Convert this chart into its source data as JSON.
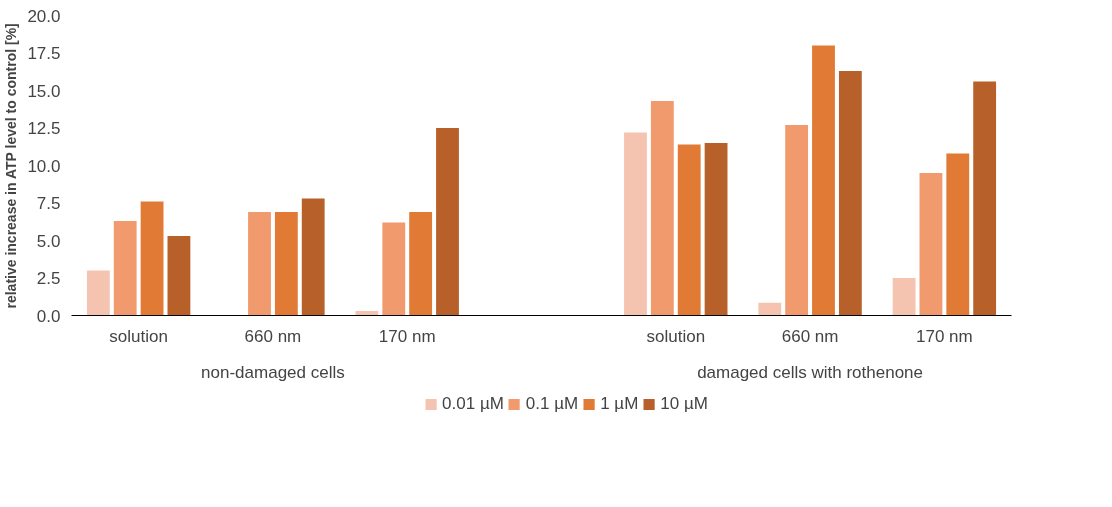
{
  "chart_data": {
    "type": "bar",
    "ylabel": "relative increase in ATP level to control [%]",
    "categories": [
      "solution",
      "660 nm",
      "170 nm",
      null,
      "solution",
      "660 nm",
      "170 nm"
    ],
    "series": [
      {
        "name": "0.01 µM",
        "color": "#f5c4b0",
        "values": [
          3.0,
          null,
          0.3,
          null,
          12.2,
          0.85,
          2.5
        ]
      },
      {
        "name": "0.1 µM",
        "color": "#f09a6e",
        "values": [
          6.3,
          6.9,
          6.2,
          null,
          14.3,
          12.7,
          9.5
        ]
      },
      {
        "name": "1 µM",
        "color": "#e07a35",
        "values": [
          7.6,
          6.9,
          6.9,
          null,
          11.4,
          18.0,
          10.8
        ]
      },
      {
        "name": "10 µM",
        "color": "#b8602a",
        "values": [
          5.3,
          7.8,
          12.5,
          null,
          11.5,
          16.3,
          15.6
        ]
      }
    ],
    "ylim": [
      0,
      20
    ],
    "yticks": [
      {
        "value": 0,
        "label": "0.0"
      },
      {
        "value": 2.5,
        "label": "2.5"
      },
      {
        "value": 5,
        "label": "5.0"
      },
      {
        "value": 7.5,
        "label": "7.5"
      },
      {
        "value": 10,
        "label": "10.0"
      },
      {
        "value": 12.5,
        "label": "12.5"
      },
      {
        "value": 15,
        "label": "15.0"
      },
      {
        "value": 17.5,
        "label": "17.5"
      },
      {
        "value": 20,
        "label": "20.0"
      }
    ],
    "annotations": [
      "non-damaged cells",
      "damaged cells with rothenone"
    ],
    "legend": "bottom",
    "grid": false
  }
}
